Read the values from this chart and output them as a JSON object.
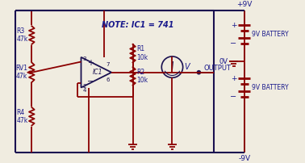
{
  "bg_color": "#f0ece0",
  "line_color": "#8B0000",
  "text_color": "#1a1a8c",
  "border_color": "#1a1050",
  "note_text": "NOTE: IC1 = 741",
  "output_label": "OUTPUT",
  "r3_label": "R3\n47k",
  "rv1_label": "RV1\n47k",
  "r4_label": "R4\n47k",
  "r1_label": "R1\n10k",
  "r2_label": "R2\n10k",
  "v9_top": "+9V",
  "v0": "0V",
  "v9_bot": "-9V",
  "bat_top": "9V BATTERY",
  "bat_bot": "9V BATTERY",
  "ic1_label": "IC1",
  "pin3": "3",
  "pin2": "2",
  "pin7": "7",
  "pin6": "6",
  "pin4": "4",
  "v_label": "V"
}
